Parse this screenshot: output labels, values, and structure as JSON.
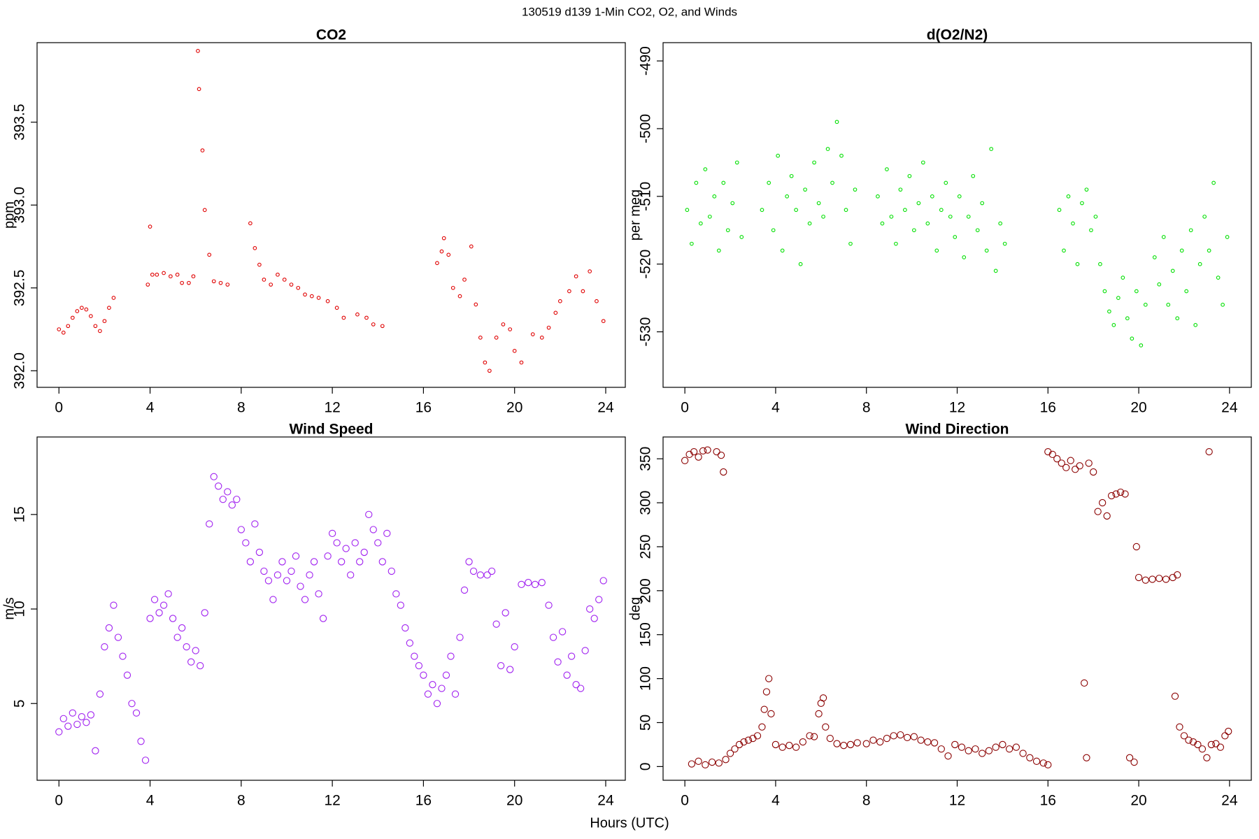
{
  "title": "130519   d139   1-Min CO2, O2, and Winds",
  "x_label": "Hours (UTC)",
  "chart_data": [
    {
      "type": "scatter",
      "title": "CO2",
      "y_label": "ppm",
      "color": "#e00000",
      "xlim": [
        -0.96,
        24.86
      ],
      "xticks": [
        0,
        4,
        8,
        12,
        16,
        20,
        24
      ],
      "ylim": [
        391.9,
        393.98
      ],
      "yticks": [
        {
          "value": 392,
          "label": "392.0"
        },
        392.5,
        {
          "value": 393,
          "label": "393.0"
        },
        393.5
      ],
      "x": [
        0.0,
        0.2,
        0.4,
        0.6,
        0.8,
        1.0,
        1.2,
        1.4,
        1.6,
        1.8,
        2.0,
        2.2,
        2.4,
        3.9,
        4.0,
        4.1,
        4.3,
        4.6,
        4.9,
        5.2,
        5.4,
        5.7,
        5.9,
        6.1,
        6.15,
        6.3,
        6.4,
        6.6,
        6.8,
        7.1,
        7.4,
        8.4,
        8.6,
        8.8,
        9.0,
        9.3,
        9.6,
        9.9,
        10.2,
        10.5,
        10.8,
        11.1,
        11.4,
        11.8,
        12.2,
        12.5,
        13.1,
        13.5,
        13.8,
        14.2,
        16.6,
        16.8,
        16.9,
        17.1,
        17.3,
        17.6,
        17.8,
        18.1,
        18.3,
        18.5,
        18.7,
        18.9,
        19.2,
        19.5,
        19.8,
        20.0,
        20.3,
        20.8,
        21.2,
        21.5,
        21.8,
        22.0,
        22.4,
        22.7,
        23.0,
        23.3,
        23.6,
        23.9
      ],
      "values": [
        392.25,
        392.23,
        392.27,
        392.32,
        392.36,
        392.38,
        392.37,
        392.33,
        392.27,
        392.24,
        392.3,
        392.38,
        392.44,
        392.52,
        392.87,
        392.58,
        392.58,
        392.59,
        392.57,
        392.58,
        392.53,
        392.53,
        392.57,
        393.93,
        393.7,
        393.33,
        392.97,
        392.7,
        392.54,
        392.53,
        392.52,
        392.89,
        392.74,
        392.64,
        392.55,
        392.52,
        392.58,
        392.55,
        392.52,
        392.5,
        392.46,
        392.45,
        392.44,
        392.42,
        392.38,
        392.32,
        392.34,
        392.32,
        392.28,
        392.27,
        392.65,
        392.72,
        392.8,
        392.7,
        392.5,
        392.45,
        392.55,
        392.75,
        392.4,
        392.2,
        392.05,
        392.0,
        392.2,
        392.28,
        392.25,
        392.12,
        392.05,
        392.22,
        392.2,
        392.26,
        392.35,
        392.42,
        392.48,
        392.57,
        392.48,
        392.6,
        392.42,
        392.3
      ]
    },
    {
      "type": "scatter",
      "title": "d(O2/N2)",
      "y_label": "per meg",
      "color": "#00e000",
      "xlim": [
        -0.96,
        24.96
      ],
      "xticks": [
        0,
        4,
        8,
        12,
        16,
        20,
        24
      ],
      "ylim": [
        -538.2,
        -487.3
      ],
      "yticks": [
        -530,
        -520,
        -510,
        -500,
        -490
      ],
      "x": [
        0.1,
        0.3,
        0.5,
        0.7,
        0.9,
        1.1,
        1.3,
        1.5,
        1.7,
        1.9,
        2.1,
        2.3,
        2.5,
        3.4,
        3.7,
        3.9,
        4.1,
        4.3,
        4.5,
        4.7,
        4.9,
        5.1,
        5.3,
        5.5,
        5.7,
        5.9,
        6.1,
        6.3,
        6.5,
        6.7,
        6.9,
        7.1,
        7.3,
        7.5,
        8.5,
        8.7,
        8.9,
        9.1,
        9.3,
        9.5,
        9.7,
        9.9,
        10.1,
        10.3,
        10.5,
        10.7,
        10.9,
        11.1,
        11.3,
        11.5,
        11.7,
        11.9,
        12.1,
        12.3,
        12.5,
        12.7,
        12.9,
        13.1,
        13.3,
        13.5,
        13.7,
        13.9,
        14.1,
        16.5,
        16.7,
        16.9,
        17.1,
        17.3,
        17.5,
        17.7,
        17.9,
        18.1,
        18.3,
        18.5,
        18.7,
        18.9,
        19.1,
        19.3,
        19.5,
        19.7,
        19.9,
        20.1,
        20.3,
        20.7,
        20.9,
        21.1,
        21.3,
        21.5,
        21.7,
        21.9,
        22.1,
        22.3,
        22.5,
        22.7,
        22.9,
        23.1,
        23.3,
        23.5,
        23.7,
        23.9
      ],
      "values": [
        -512,
        -517,
        -508,
        -514,
        -506,
        -513,
        -510,
        -518,
        -508,
        -515,
        -511,
        -505,
        -516,
        -512,
        -508,
        -515,
        -504,
        -518,
        -510,
        -507,
        -512,
        -520,
        -509,
        -514,
        -505,
        -511,
        -513,
        -503,
        -508,
        -499,
        -504,
        -512,
        -517,
        -509,
        -510,
        -514,
        -506,
        -513,
        -517,
        -509,
        -512,
        -507,
        -515,
        -511,
        -505,
        -514,
        -510,
        -518,
        -512,
        -508,
        -513,
        -516,
        -510,
        -519,
        -513,
        -507,
        -515,
        -511,
        -518,
        -503,
        -521,
        -514,
        -517,
        -512,
        -518,
        -510,
        -514,
        -520,
        -511,
        -509,
        -515,
        -513,
        -520,
        -524,
        -527,
        -529,
        -525,
        -522,
        -528,
        -531,
        -524,
        -532,
        -526,
        -519,
        -523,
        -516,
        -526,
        -521,
        -528,
        -518,
        -524,
        -515,
        -529,
        -520,
        -513,
        -518,
        -508,
        -522,
        -526,
        -516
      ]
    },
    {
      "type": "scatter",
      "title": "Wind Speed",
      "y_label": "m/s",
      "color": "#a020f0",
      "xlim": [
        -0.96,
        24.86
      ],
      "xticks": [
        0,
        4,
        8,
        12,
        16,
        20,
        24
      ],
      "ylim": [
        0.94,
        19.1
      ],
      "yticks": [
        5,
        10,
        15
      ],
      "x": [
        0.0,
        0.2,
        0.4,
        0.6,
        0.8,
        1.0,
        1.2,
        1.4,
        1.6,
        1.8,
        2.0,
        2.2,
        2.4,
        2.6,
        2.8,
        3.0,
        3.2,
        3.4,
        3.6,
        3.8,
        4.0,
        4.2,
        4.4,
        4.6,
        4.8,
        5.0,
        5.2,
        5.4,
        5.6,
        5.8,
        6.0,
        6.2,
        6.4,
        6.6,
        6.8,
        7.0,
        7.2,
        7.4,
        7.6,
        7.8,
        8.0,
        8.2,
        8.4,
        8.6,
        8.8,
        9.0,
        9.2,
        9.4,
        9.6,
        9.8,
        10.0,
        10.2,
        10.4,
        10.6,
        10.8,
        11.0,
        11.2,
        11.4,
        11.6,
        11.8,
        12.0,
        12.2,
        12.4,
        12.6,
        12.8,
        13.0,
        13.2,
        13.4,
        13.6,
        13.8,
        14.0,
        14.2,
        14.4,
        14.6,
        14.8,
        15.0,
        15.2,
        15.4,
        15.6,
        15.8,
        16.0,
        16.2,
        16.4,
        16.6,
        16.8,
        17.0,
        17.2,
        17.4,
        17.6,
        17.8,
        18.0,
        18.2,
        18.5,
        18.8,
        19.0,
        19.2,
        19.4,
        19.6,
        19.8,
        20.0,
        20.3,
        20.6,
        20.9,
        21.2,
        21.5,
        21.7,
        21.9,
        22.1,
        22.3,
        22.5,
        22.7,
        22.9,
        23.1,
        23.3,
        23.5,
        23.7,
        23.9
      ],
      "values": [
        3.5,
        4.2,
        3.8,
        4.5,
        3.9,
        4.3,
        4.0,
        4.4,
        2.5,
        5.5,
        8.0,
        9.0,
        10.2,
        8.5,
        7.5,
        6.5,
        5.0,
        4.5,
        3.0,
        2.0,
        9.5,
        10.5,
        9.8,
        10.2,
        10.8,
        9.5,
        8.5,
        9.0,
        8.0,
        7.2,
        7.8,
        7.0,
        9.8,
        14.5,
        17.0,
        16.5,
        15.8,
        16.2,
        15.5,
        15.8,
        14.2,
        13.5,
        12.5,
        14.5,
        13.0,
        12.0,
        11.5,
        10.5,
        11.8,
        12.5,
        11.5,
        12.0,
        12.8,
        11.2,
        10.5,
        11.8,
        12.5,
        10.8,
        9.5,
        12.8,
        14.0,
        13.5,
        12.5,
        13.2,
        11.8,
        13.5,
        12.5,
        13.0,
        15.0,
        14.2,
        13.5,
        12.5,
        14.0,
        12.0,
        10.8,
        10.2,
        9.0,
        8.2,
        7.5,
        7.0,
        6.5,
        5.5,
        6.0,
        5.0,
        5.8,
        6.5,
        7.5,
        5.5,
        8.5,
        11.0,
        12.5,
        12.0,
        11.8,
        11.8,
        12.0,
        9.2,
        7.0,
        9.8,
        6.8,
        8.0,
        11.3,
        11.4,
        11.3,
        11.4,
        10.2,
        8.5,
        7.2,
        8.8,
        6.5,
        7.5,
        6.0,
        5.8,
        7.8,
        10.0,
        9.5,
        10.5,
        11.5
      ]
    },
    {
      "type": "scatter",
      "title": "Wind Direction",
      "y_label": "deg",
      "color": "#8b0000",
      "xlim": [
        -0.96,
        24.96
      ],
      "xticks": [
        0,
        4,
        8,
        12,
        16,
        20,
        24
      ],
      "ylim": [
        -15.6,
        374.8
      ],
      "yticks": [
        0,
        50,
        100,
        150,
        200,
        250,
        300,
        350
      ],
      "x": [
        0.0,
        0.2,
        0.4,
        0.6,
        0.8,
        1.0,
        1.4,
        1.6,
        1.7,
        0.3,
        0.6,
        0.9,
        1.2,
        1.5,
        1.8,
        2.0,
        2.2,
        2.4,
        2.6,
        2.8,
        3.0,
        3.2,
        3.4,
        3.5,
        3.6,
        3.7,
        3.8,
        4.0,
        4.3,
        4.6,
        4.9,
        5.2,
        5.5,
        5.7,
        5.9,
        6.0,
        6.1,
        6.2,
        6.4,
        6.7,
        7.0,
        7.3,
        7.6,
        8.0,
        8.3,
        8.6,
        8.9,
        9.2,
        9.5,
        9.8,
        10.1,
        10.4,
        10.7,
        11.0,
        11.3,
        11.6,
        11.9,
        12.2,
        12.5,
        12.8,
        13.1,
        13.4,
        13.7,
        14.0,
        14.3,
        14.6,
        14.9,
        15.2,
        15.5,
        15.8,
        16.0,
        16.0,
        16.2,
        16.4,
        16.6,
        16.8,
        17.0,
        17.2,
        17.4,
        17.6,
        17.7,
        17.8,
        18.0,
        18.2,
        18.4,
        18.6,
        18.8,
        19.0,
        19.2,
        19.4,
        19.6,
        19.8,
        19.9,
        20.0,
        20.3,
        20.6,
        20.9,
        21.2,
        21.5,
        21.7,
        21.6,
        21.8,
        22.0,
        22.2,
        22.4,
        22.6,
        22.8,
        23.0,
        23.1,
        23.2,
        23.4,
        23.6,
        23.8,
        23.95
      ],
      "values": [
        348,
        355,
        358,
        352,
        359,
        360,
        358,
        354,
        335,
        3,
        6,
        2,
        5,
        4,
        8,
        15,
        20,
        25,
        28,
        30,
        32,
        35,
        45,
        65,
        85,
        100,
        60,
        25,
        22,
        24,
        22,
        28,
        35,
        34,
        60,
        72,
        78,
        45,
        32,
        26,
        24,
        25,
        27,
        26,
        30,
        28,
        32,
        35,
        36,
        33,
        34,
        30,
        28,
        27,
        20,
        12,
        25,
        22,
        18,
        20,
        15,
        18,
        22,
        25,
        20,
        22,
        15,
        10,
        6,
        4,
        2,
        358,
        355,
        350,
        345,
        340,
        348,
        338,
        342,
        95,
        10,
        345,
        335,
        290,
        300,
        285,
        308,
        310,
        312,
        310,
        10,
        5,
        250,
        215,
        212,
        213,
        214,
        213,
        215,
        218,
        80,
        45,
        35,
        30,
        28,
        25,
        20,
        10,
        358,
        25,
        26,
        22,
        35,
        40
      ]
    }
  ]
}
